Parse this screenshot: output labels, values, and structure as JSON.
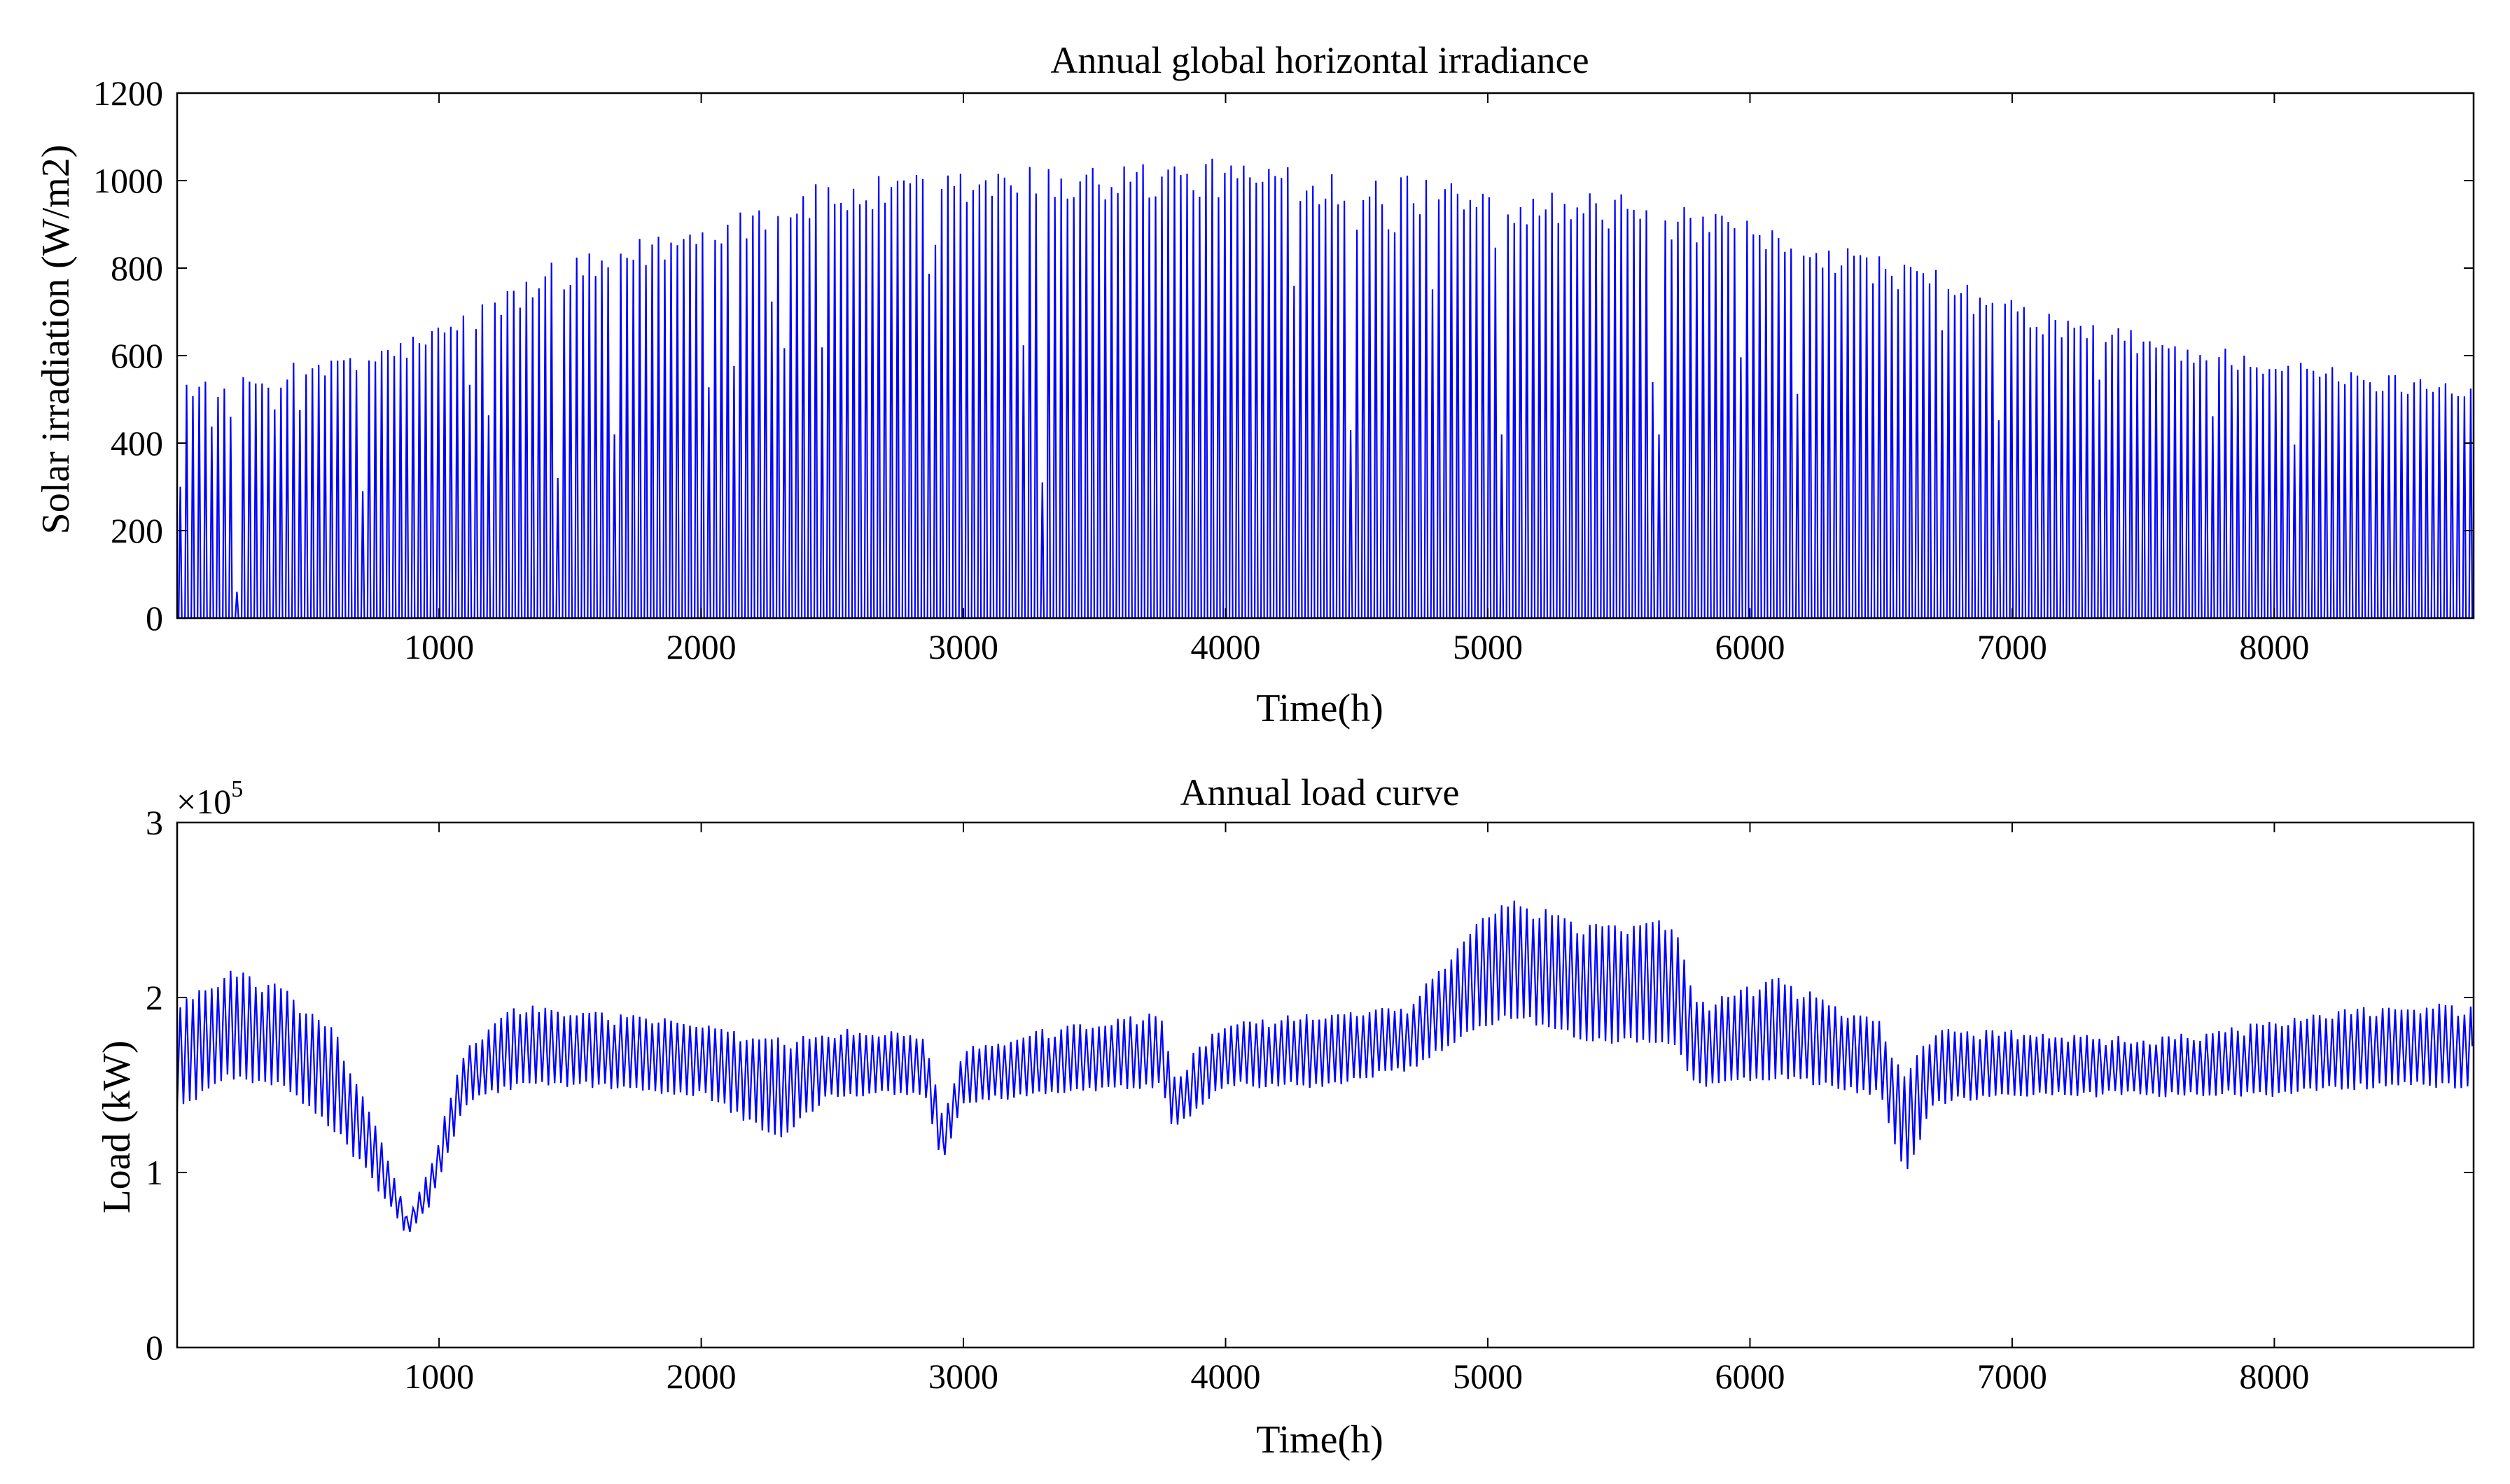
{
  "chart_data": [
    {
      "type": "line",
      "title": "Annual global horizontal irradiance",
      "xlabel": "Time(h)",
      "ylabel": "Solar irradiation (W/m2)",
      "xlim": [
        1,
        8760
      ],
      "ylim": [
        0,
        1200
      ],
      "xticks": [
        1000,
        2000,
        3000,
        4000,
        5000,
        6000,
        7000,
        8000
      ],
      "xtick_labels": [
        "1000",
        "2000",
        "3000",
        "4000",
        "5000",
        "6000",
        "7000",
        "8000"
      ],
      "yticks": [
        0,
        200,
        400,
        600,
        800,
        1000,
        1200
      ],
      "ytick_labels": [
        "0",
        "200",
        "400",
        "600",
        "800",
        "1000",
        "1200"
      ],
      "grid": false,
      "series": [
        {
          "name": "Solar irradiation",
          "color": "#0000ff",
          "description": "hourly irradiance: zero at night, one daily peak; daily peak envelope given by day-of-year (x in hours) and peak value",
          "peak_envelope": {
            "x": [
              1,
              240,
              480,
              720,
              960,
              1200,
              1440,
              1680,
              1920,
              2160,
              2400,
              2640,
              2880,
              3120,
              3360,
              3600,
              3840,
              4080,
              4320,
              4560,
              4800,
              5040,
              5280,
              5520,
              5760,
              6000,
              6240,
              6480,
              6720,
              6960,
              7200,
              7440,
              7680,
              7920,
              8160,
              8400,
              8640,
              8760
            ],
            "values": [
              540,
              540,
              580,
              600,
              650,
              720,
              800,
              840,
              880,
              930,
              970,
              990,
              1000,
              1010,
              1020,
              1025,
              1030,
              1030,
              1020,
              1000,
              990,
              970,
              960,
              950,
              920,
              890,
              860,
              820,
              780,
              720,
              680,
              650,
              620,
              600,
              570,
              550,
              545,
              545
            ]
          },
          "cloudy_days": [
            {
              "x": 190,
              "peak": 460
            },
            {
              "x": 215,
              "peak": 60
            },
            {
              "x": 700,
              "peak": 290
            },
            {
              "x": 1440,
              "peak": 320
            },
            {
              "x": 1660,
              "peak": 420
            },
            {
              "x": 3290,
              "peak": 310
            },
            {
              "x": 4470,
              "peak": 430
            },
            {
              "x": 5050,
              "peak": 420
            },
            {
              "x": 5640,
              "peak": 420
            }
          ]
        }
      ]
    },
    {
      "type": "line",
      "title": "Annual load curve",
      "xlabel": "Time(h)",
      "ylabel": "Load (kW)",
      "y_multiplier": {
        "base": "×10",
        "exponent": "5"
      },
      "xlim": [
        1,
        8760
      ],
      "ylim": [
        0,
        3
      ],
      "units_note": "y values in units of 1e5 kW",
      "xticks": [
        1000,
        2000,
        3000,
        4000,
        5000,
        6000,
        7000,
        8000
      ],
      "xtick_labels": [
        "1000",
        "2000",
        "3000",
        "4000",
        "5000",
        "6000",
        "7000",
        "8000"
      ],
      "yticks": [
        0,
        1,
        2,
        3
      ],
      "ytick_labels": [
        "0",
        "1",
        "2",
        "3"
      ],
      "grid": false,
      "series": [
        {
          "name": "Load",
          "color": "#0000ff",
          "description": "hourly load with daily oscillation; given as daily minimum and daily maximum envelope vs hour of year",
          "x": [
            1,
            200,
            400,
            600,
            750,
            880,
            960,
            1100,
            1300,
            1600,
            2000,
            2300,
            2500,
            2850,
            2920,
            3000,
            3300,
            3750,
            3800,
            4000,
            4400,
            4700,
            5000,
            5100,
            5400,
            5700,
            5800,
            6100,
            6500,
            6590,
            6700,
            7000,
            7500,
            8000,
            8400,
            8760
          ],
          "daily_max": [
            1.95,
            2.15,
            2.05,
            1.8,
            1.3,
            0.75,
            1.0,
            1.7,
            1.95,
            1.9,
            1.85,
            1.75,
            1.8,
            1.8,
            1.3,
            1.7,
            1.8,
            1.9,
            1.55,
            1.85,
            1.9,
            1.95,
            2.5,
            2.55,
            2.4,
            2.45,
            1.95,
            2.1,
            1.85,
            1.55,
            1.8,
            1.8,
            1.75,
            1.85,
            1.95,
            1.95
          ],
          "daily_min": [
            1.35,
            1.55,
            1.5,
            1.25,
            0.95,
            0.65,
            0.8,
            1.4,
            1.5,
            1.5,
            1.45,
            1.2,
            1.45,
            1.45,
            1.05,
            1.4,
            1.45,
            1.5,
            1.25,
            1.5,
            1.5,
            1.6,
            1.85,
            1.9,
            1.75,
            1.75,
            1.5,
            1.55,
            1.45,
            0.98,
            1.4,
            1.45,
            1.45,
            1.45,
            1.5,
            1.5
          ]
        }
      ]
    }
  ]
}
